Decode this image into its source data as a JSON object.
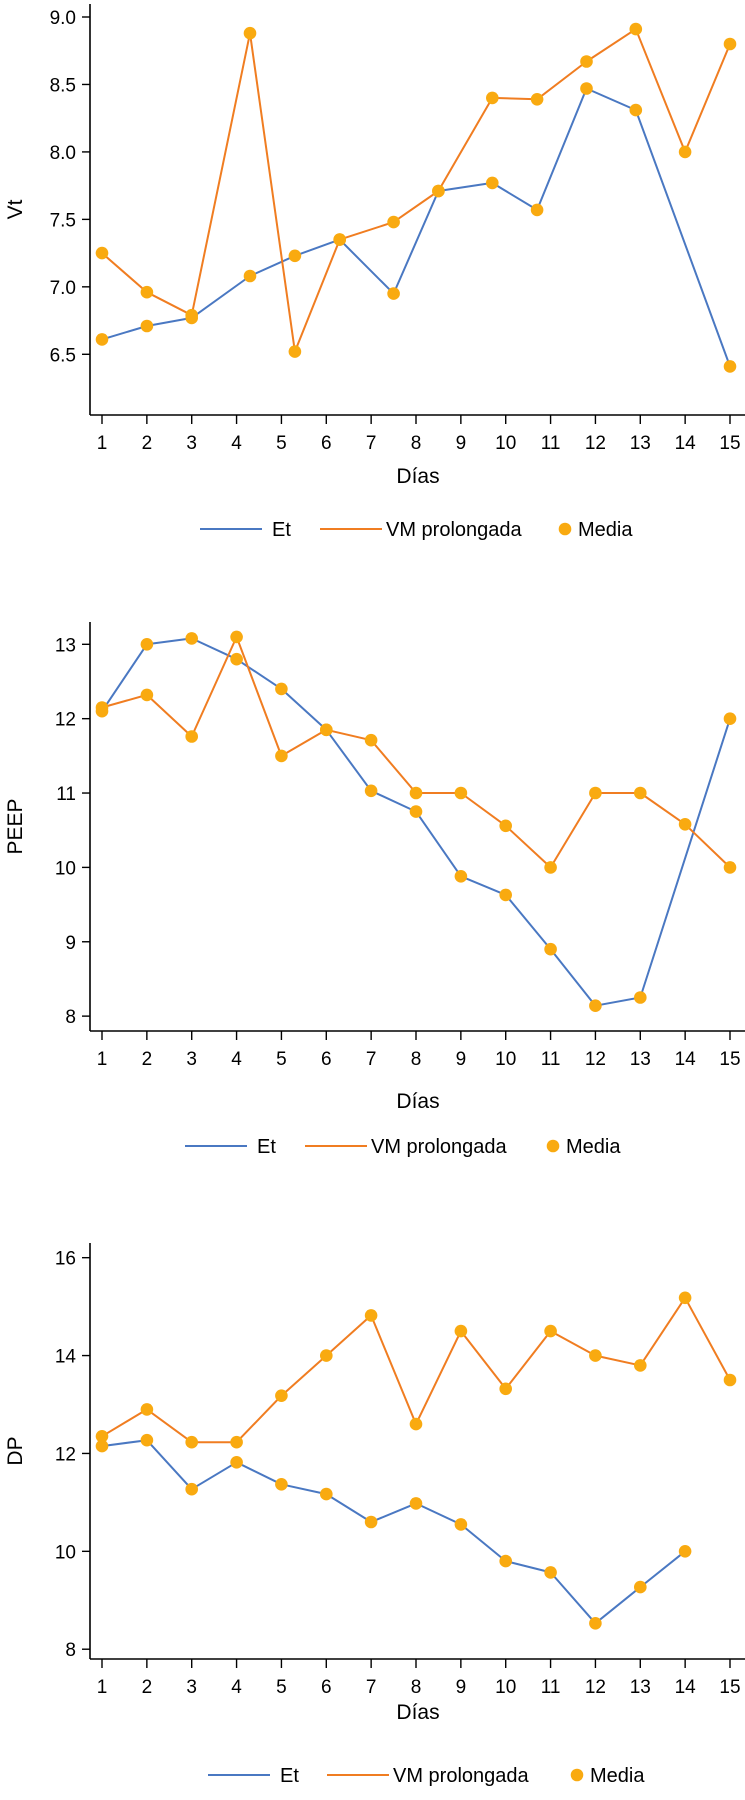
{
  "colors": {
    "et": "#4a78c2",
    "vm": "#f07d21",
    "media": "#f9aa10"
  },
  "chart_data": [
    {
      "type": "line",
      "ylabel": "Vt",
      "xlabel": "Días",
      "xlim": [
        1,
        15
      ],
      "ylim": [
        6.05,
        9.0
      ],
      "yticks": [
        6.5,
        7.0,
        7.5,
        8.0,
        8.5,
        9.0
      ],
      "ytick_labels": [
        "6.5",
        "7.0",
        "7.5",
        "8.0",
        "8.5",
        "9.0"
      ],
      "xtick_labels": [
        "1",
        "2",
        "3",
        "4",
        "5",
        "6",
        "7",
        "8",
        "9",
        "10",
        "11",
        "12",
        "13",
        "14",
        "15"
      ],
      "legend": [
        "Et",
        "VM prolongada",
        "Media"
      ],
      "series": [
        {
          "name": "Et",
          "x": [
            1,
            2,
            3,
            4.3,
            5.3,
            6.3,
            7.5,
            8.5,
            9.7,
            10.7,
            11.8,
            12.9,
            15
          ],
          "values": [
            6.61,
            6.71,
            6.77,
            7.08,
            7.23,
            7.35,
            6.95,
            7.71,
            7.77,
            7.57,
            8.47,
            8.31,
            6.41
          ]
        },
        {
          "name": "VM prolongada",
          "x": [
            1,
            2,
            3,
            4.3,
            5.3,
            6.3,
            7.5,
            8.5,
            9.7,
            10.7,
            11.8,
            12.9,
            14,
            15
          ],
          "values": [
            7.25,
            6.96,
            6.79,
            8.88,
            6.52,
            7.35,
            7.48,
            7.71,
            8.4,
            8.39,
            8.67,
            8.91,
            8.0,
            8.8
          ]
        }
      ]
    },
    {
      "type": "line",
      "ylabel": "PEEP",
      "xlabel": "Días",
      "xlim": [
        1,
        15
      ],
      "ylim": [
        7.8,
        13.3
      ],
      "yticks": [
        8,
        9,
        10,
        11,
        12,
        13
      ],
      "ytick_labels": [
        "8",
        "9",
        "10",
        "11",
        "12",
        "13"
      ],
      "xtick_labels": [
        "1",
        "2",
        "3",
        "4",
        "5",
        "6",
        "7",
        "8",
        "9",
        "10",
        "11",
        "12",
        "13",
        "14",
        "15"
      ],
      "legend": [
        "Et",
        "VM prolongada",
        "Media"
      ],
      "series": [
        {
          "name": "Et",
          "x": [
            1,
            2,
            3,
            4,
            5,
            6,
            7,
            8,
            9,
            10,
            11,
            12,
            13,
            15
          ],
          "values": [
            12.1,
            13.0,
            13.08,
            12.8,
            12.4,
            11.85,
            11.03,
            10.75,
            9.88,
            9.63,
            8.9,
            8.14,
            8.25,
            12.0
          ]
        },
        {
          "name": "VM prolongada",
          "x": [
            1,
            2,
            3,
            4,
            5,
            6,
            7,
            8,
            9,
            10,
            11,
            12,
            13,
            14,
            15
          ],
          "values": [
            12.15,
            12.32,
            11.76,
            13.1,
            11.5,
            11.85,
            11.71,
            11.0,
            11.0,
            10.56,
            10.0,
            11.0,
            11.0,
            10.58,
            10.0
          ]
        }
      ]
    },
    {
      "type": "line",
      "ylabel": "DP",
      "xlabel": "Días",
      "xlim": [
        1,
        15
      ],
      "ylim": [
        7.8,
        16.3
      ],
      "yticks": [
        8,
        10,
        12,
        14,
        16
      ],
      "ytick_labels": [
        "8",
        "10",
        "12",
        "14",
        "16"
      ],
      "xtick_labels": [
        "1",
        "2",
        "3",
        "4",
        "5",
        "6",
        "7",
        "8",
        "9",
        "10",
        "11",
        "12",
        "13",
        "14",
        "15"
      ],
      "legend": [
        "Et",
        "VM prolongada",
        "Media"
      ],
      "series": [
        {
          "name": "Et",
          "x": [
            1,
            2,
            3,
            4,
            5,
            6,
            7,
            8,
            9,
            10,
            11,
            12,
            13,
            14
          ],
          "values": [
            12.15,
            12.27,
            11.27,
            11.82,
            11.37,
            11.17,
            10.6,
            10.98,
            10.55,
            9.8,
            9.57,
            8.53,
            9.27,
            10.0
          ]
        },
        {
          "name": "VM prolongada",
          "x": [
            1,
            2,
            3,
            4,
            5,
            6,
            7,
            8,
            9,
            10,
            11,
            12,
            13,
            14,
            15
          ],
          "values": [
            12.35,
            12.9,
            12.23,
            12.23,
            13.18,
            14.0,
            14.82,
            12.6,
            14.5,
            13.32,
            14.5,
            14.0,
            13.8,
            15.18,
            13.5
          ]
        }
      ]
    }
  ]
}
